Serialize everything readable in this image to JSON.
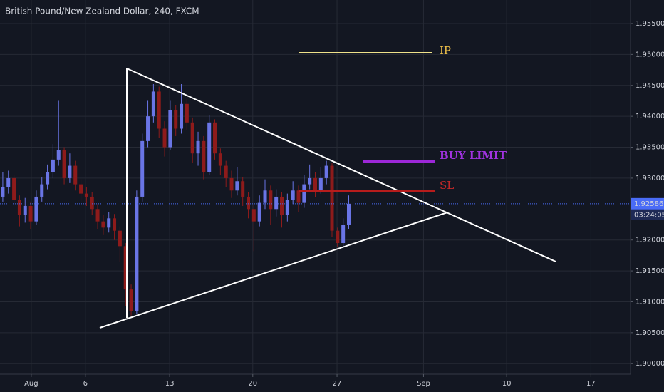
{
  "chart_data": {
    "type": "candlestick",
    "title": "British Pound/New Zealand Dollar, 240, FXCM",
    "up_color": "#6a75e6",
    "down_color": "#8e1b1b",
    "grid": true,
    "ylim": [
      1.8983,
      1.9588
    ],
    "yticks": [
      {
        "value": 1.955,
        "label": "1.95500"
      },
      {
        "value": 1.95,
        "label": "1.95000"
      },
      {
        "value": 1.945,
        "label": "1.94500"
      },
      {
        "value": 1.94,
        "label": "1.94000"
      },
      {
        "value": 1.935,
        "label": "1.93500"
      },
      {
        "value": 1.93,
        "label": "1.93000"
      },
      {
        "value": 1.92,
        "label": "1.92000"
      },
      {
        "value": 1.915,
        "label": "1.91500"
      },
      {
        "value": 1.91,
        "label": "1.91000"
      },
      {
        "value": 1.905,
        "label": "1.90500"
      },
      {
        "value": 1.9,
        "label": "1.90000"
      }
    ],
    "xlim": [
      -0.5,
      112.5
    ],
    "xticks": [
      {
        "value": 5.1,
        "label": "Aug"
      },
      {
        "value": 14.8,
        "label": "6"
      },
      {
        "value": 29.9,
        "label": "13"
      },
      {
        "value": 44.8,
        "label": "20"
      },
      {
        "value": 59.9,
        "label": "27"
      },
      {
        "value": 75.4,
        "label": "Sep"
      },
      {
        "value": 90.3,
        "label": "10"
      },
      {
        "value": 105.4,
        "label": "17"
      }
    ],
    "open": [
      1.927,
      1.9285,
      1.93,
      1.9265,
      1.924,
      1.9255,
      1.923,
      1.927,
      1.929,
      1.931,
      1.933,
      1.9345,
      1.93,
      1.932,
      1.929,
      1.9275,
      1.927,
      1.925,
      1.923,
      1.922,
      1.9235,
      1.9215,
      1.919,
      1.912,
      1.9085,
      1.927,
      1.936,
      1.94,
      1.944,
      1.938,
      1.935,
      1.941,
      1.938,
      1.942,
      1.939,
      1.934,
      1.936,
      1.931,
      1.939,
      1.934,
      1.932,
      1.93,
      1.928,
      1.9295,
      1.927,
      1.925,
      1.923,
      1.926,
      1.928,
      1.925,
      1.927,
      1.924,
      1.9265,
      1.928,
      1.926,
      1.929,
      1.93,
      1.928,
      1.93,
      1.932,
      1.9215,
      1.9195,
      1.9225
    ],
    "high": [
      1.931,
      1.9312,
      1.9305,
      1.9272,
      1.9268,
      1.9262,
      1.928,
      1.9302,
      1.9322,
      1.9355,
      1.9425,
      1.935,
      1.934,
      1.9328,
      1.9298,
      1.9285,
      1.9278,
      1.9258,
      1.924,
      1.9245,
      1.9242,
      1.9222,
      1.9195,
      1.9128,
      1.928,
      1.9372,
      1.9425,
      1.9452,
      1.9448,
      1.9392,
      1.9425,
      1.9418,
      1.9452,
      1.9428,
      1.9398,
      1.9375,
      1.9368,
      1.9402,
      1.9395,
      1.9348,
      1.9328,
      1.9312,
      1.9318,
      1.9302,
      1.9278,
      1.9258,
      1.9272,
      1.9298,
      1.9288,
      1.9282,
      1.9278,
      1.9275,
      1.9295,
      1.9288,
      1.9305,
      1.9322,
      1.931,
      1.9318,
      1.9328,
      1.9325,
      1.922,
      1.9235,
      1.9272
    ],
    "low": [
      1.9262,
      1.9275,
      1.9258,
      1.9222,
      1.9228,
      1.9218,
      1.9225,
      1.9262,
      1.9282,
      1.93,
      1.932,
      1.929,
      1.9292,
      1.928,
      1.9262,
      1.9255,
      1.924,
      1.9218,
      1.9208,
      1.9212,
      1.92,
      1.9165,
      1.9093,
      1.9078,
      1.908,
      1.9262,
      1.935,
      1.939,
      1.9365,
      1.9335,
      1.9345,
      1.9368,
      1.9372,
      1.9378,
      1.9325,
      1.932,
      1.9298,
      1.9305,
      1.933,
      1.9305,
      1.9285,
      1.9268,
      1.9272,
      1.9255,
      1.9235,
      1.9182,
      1.9222,
      1.925,
      1.9225,
      1.9238,
      1.922,
      1.923,
      1.9258,
      1.9245,
      1.9252,
      1.9282,
      1.927,
      1.9275,
      1.929,
      1.9205,
      1.9188,
      1.919,
      1.9218
    ],
    "close": [
      1.9285,
      1.93,
      1.9265,
      1.924,
      1.9255,
      1.923,
      1.927,
      1.929,
      1.931,
      1.933,
      1.9345,
      1.93,
      1.932,
      1.929,
      1.9275,
      1.927,
      1.925,
      1.923,
      1.922,
      1.9235,
      1.9215,
      1.919,
      1.912,
      1.9085,
      1.927,
      1.936,
      1.94,
      1.944,
      1.938,
      1.935,
      1.941,
      1.938,
      1.942,
      1.939,
      1.934,
      1.936,
      1.931,
      1.939,
      1.934,
      1.932,
      1.93,
      1.928,
      1.9295,
      1.927,
      1.925,
      1.923,
      1.926,
      1.928,
      1.925,
      1.927,
      1.924,
      1.9265,
      1.928,
      1.926,
      1.929,
      1.93,
      1.928,
      1.93,
      1.932,
      1.9215,
      1.9195,
      1.9225,
      1.92586
    ],
    "last_price": 1.92586,
    "countdown": "03:24:05",
    "annotations": [
      "IP",
      "BUY LIMIT",
      "SL"
    ]
  }
}
